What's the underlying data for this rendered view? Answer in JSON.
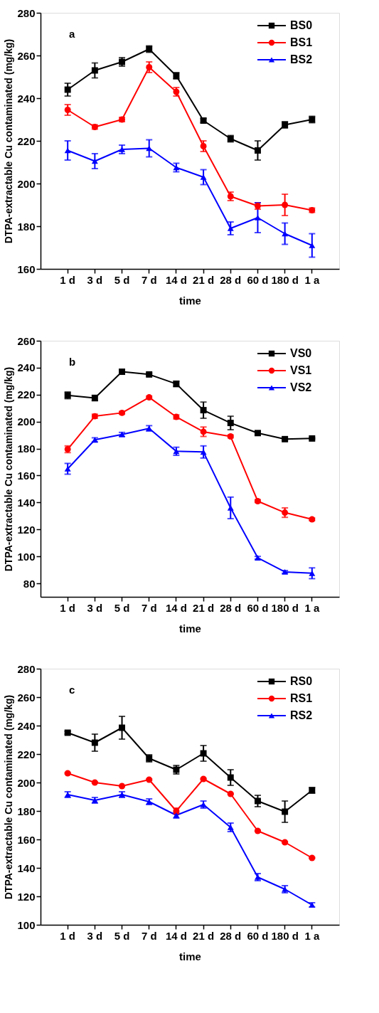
{
  "chart_data": [
    {
      "type": "line",
      "xlabel": "time",
      "ylabel": "DTPA-extractable Cu contaminated (mg/kg)",
      "annotations": [
        "a"
      ],
      "categories": [
        "1 d",
        "3 d",
        "5 d",
        "7 d",
        "14 d",
        "21 d",
        "28 d",
        "60 d",
        "180 d",
        "1 a"
      ],
      "ylim": [
        160,
        280
      ],
      "yticks": [
        160,
        180,
        200,
        220,
        240,
        260,
        280
      ],
      "grid": false,
      "legend": "top right",
      "series": [
        {
          "name": "BS0",
          "color": "#000000",
          "marker": "square",
          "values": [
            244,
            253,
            257,
            263,
            250.5,
            229.5,
            221,
            215.5,
            227.5,
            230
          ],
          "errors": [
            3,
            3.5,
            2,
            1.5,
            1.5,
            1,
            1.5,
            4.5,
            1.5,
            1.5
          ]
        },
        {
          "name": "BS1",
          "color": "#ff0000",
          "marker": "circle",
          "values": [
            234.5,
            226.5,
            230,
            254.5,
            243,
            217.5,
            194,
            189.5,
            190,
            187.5
          ],
          "errors": [
            2.5,
            1,
            1,
            2.5,
            2,
            2.5,
            2,
            1.5,
            5,
            1
          ]
        },
        {
          "name": "BS2",
          "color": "#0000ff",
          "marker": "triangle",
          "values": [
            215.5,
            210.5,
            216,
            216.5,
            207.5,
            203,
            179,
            184,
            176.5,
            171
          ],
          "errors": [
            4.5,
            3.5,
            2,
            4,
            2,
            3.5,
            3,
            7,
            5,
            5.5
          ]
        }
      ]
    },
    {
      "type": "line",
      "xlabel": "time",
      "ylabel": "DTPA-extractable Cu contaminated  (mg/kg)",
      "annotations": [
        "b"
      ],
      "categories": [
        "1 d",
        "3 d",
        "5 d",
        "7 d",
        "14 d",
        "21 d",
        "28 d",
        "60 d",
        "180 d",
        "1 a"
      ],
      "ylim": [
        70,
        260
      ],
      "yticks": [
        80,
        100,
        120,
        140,
        160,
        180,
        200,
        220,
        240,
        260
      ],
      "grid": false,
      "legend": "top right",
      "series": [
        {
          "name": "VS0",
          "color": "#000000",
          "marker": "square",
          "values": [
            219.5,
            217.5,
            237,
            235,
            228,
            208.5,
            199,
            191.5,
            187,
            187.5
          ],
          "errors": [
            2.5,
            2,
            1.5,
            1,
            2,
            6,
            5,
            1.5,
            1,
            0.5
          ]
        },
        {
          "name": "VS1",
          "color": "#ff0000",
          "marker": "circle",
          "values": [
            179.5,
            204,
            206.5,
            218,
            203.5,
            192.5,
            189,
            141,
            132.5,
            127.5
          ],
          "errors": [
            2.5,
            1.5,
            1,
            1,
            1.5,
            3.5,
            1,
            1,
            3.5,
            1
          ]
        },
        {
          "name": "VS2",
          "color": "#0000ff",
          "marker": "triangle",
          "values": [
            165,
            186.5,
            190.5,
            195,
            178,
            177.5,
            136,
            99,
            88.5,
            87.5
          ],
          "errors": [
            4,
            1.5,
            1.5,
            2,
            3,
            4.5,
            8,
            1,
            1,
            4
          ]
        }
      ]
    },
    {
      "type": "line",
      "xlabel": "time",
      "ylabel": "DTPA-extractable Cu contaminated  (mg/kg)",
      "annotations": [
        "c"
      ],
      "categories": [
        "1 d",
        "3 d",
        "5 d",
        "7 d",
        "14 d",
        "21 d",
        "28 d",
        "60 d",
        "180 d",
        "1 a"
      ],
      "ylim": [
        100,
        280
      ],
      "yticks": [
        100,
        120,
        140,
        160,
        180,
        200,
        220,
        240,
        260,
        280
      ],
      "grid": false,
      "legend": "top right",
      "series": [
        {
          "name": "RS0",
          "color": "#000000",
          "marker": "square",
          "values": [
            235,
            228,
            238.5,
            217,
            209,
            220.5,
            203.5,
            187,
            179.5,
            194.5
          ],
          "errors": [
            1,
            6,
            8,
            2.5,
            3,
            5.5,
            5.5,
            4,
            7.5,
            2
          ]
        },
        {
          "name": "RS1",
          "color": "#ff0000",
          "marker": "circle",
          "values": [
            206.5,
            200,
            197.5,
            202,
            180,
            202.5,
            192,
            166,
            158,
            147
          ],
          "errors": [
            0.5,
            0.5,
            0.5,
            0.5,
            2,
            0.5,
            0.5,
            0.5,
            0.5,
            0.5
          ]
        },
        {
          "name": "RS2",
          "color": "#0000ff",
          "marker": "triangle",
          "values": [
            191.5,
            187.5,
            191.5,
            186.5,
            177,
            184.5,
            168.5,
            133.5,
            125,
            114
          ],
          "errors": [
            2,
            2,
            2,
            2,
            2,
            2.5,
            3,
            2.5,
            2.5,
            1.5
          ]
        }
      ]
    }
  ]
}
